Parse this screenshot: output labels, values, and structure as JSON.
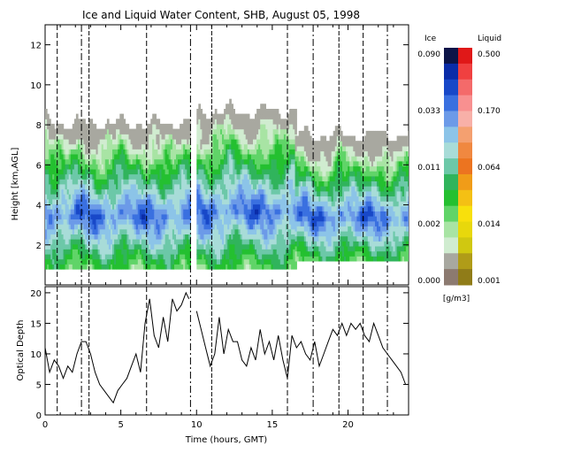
{
  "chart_data": [
    {
      "type": "heatmap",
      "title": "Ice and Liquid Water Content, SHB, August 05, 1998",
      "xlabel": "",
      "ylabel": "Height [km,AGL]",
      "xlim": [
        0,
        24
      ],
      "ylim": [
        0,
        13
      ],
      "x_ticks": [
        "0",
        "5",
        "10",
        "15",
        "20"
      ],
      "y_ticks": [
        "2",
        "4",
        "6",
        "8",
        "10",
        "12"
      ],
      "event_lines_hours": [
        0.8,
        2.4,
        2.9,
        6.7,
        9.6,
        11.0,
        16.0,
        17.7,
        19.4,
        21.0,
        22.6
      ],
      "cloud_layers_hours": [
        [
          0.0,
          9.5,
          0.8,
          8.6
        ],
        [
          10.0,
          16.5,
          0.8,
          9.2
        ],
        [
          16.5,
          24.0,
          1.2,
          8.0
        ]
      ],
      "colorbar": {
        "ice_label": "Ice",
        "liquid_label": "Liquid",
        "units": "[g/m3]",
        "ice_ticks": [
          "0.090",
          "0.033",
          "0.011",
          "0.002",
          "0.000"
        ],
        "liquid_ticks": [
          "0.500",
          "0.170",
          "0.064",
          "0.014",
          "0.001"
        ],
        "ice_colors": [
          "#0c1448",
          "#0a2ca8",
          "#1848c8",
          "#3a70e0",
          "#6c9ae8",
          "#8cc4e8",
          "#a8dcd8",
          "#6cc8a8",
          "#30b45c",
          "#24c030",
          "#60d468",
          "#a8e4a4",
          "#d0ecd0",
          "#a8a8a0",
          "#8c7a70"
        ],
        "liquid_colors": [
          "#e01818",
          "#f04040",
          "#f46a6a",
          "#f89090",
          "#f8b0a8",
          "#f4a070",
          "#f08840",
          "#ec7420",
          "#f09c18",
          "#f4c014",
          "#f8e00c",
          "#e8d80c",
          "#d0c810",
          "#b09c18",
          "#907c18"
        ]
      }
    },
    {
      "type": "line",
      "title": "",
      "xlabel": "Time (hours, GMT)",
      "ylabel": "Optical Depth",
      "xlim": [
        0,
        24
      ],
      "ylim": [
        0,
        21
      ],
      "x_ticks": [
        "0",
        "5",
        "10",
        "15",
        "20"
      ],
      "y_ticks": [
        "0",
        "5",
        "10",
        "15",
        "20"
      ],
      "x": [
        0.0,
        0.3,
        0.6,
        0.9,
        1.2,
        1.5,
        1.8,
        2.1,
        2.4,
        2.7,
        3.0,
        3.3,
        3.6,
        3.9,
        4.2,
        4.5,
        4.8,
        5.1,
        5.4,
        5.7,
        6.0,
        6.3,
        6.6,
        6.9,
        7.2,
        7.5,
        7.8,
        8.1,
        8.4,
        8.7,
        9.0,
        9.3,
        9.5,
        10.0,
        10.3,
        10.6,
        10.9,
        11.2,
        11.5,
        11.8,
        12.1,
        12.4,
        12.7,
        13.0,
        13.3,
        13.6,
        13.9,
        14.2,
        14.5,
        14.8,
        15.1,
        15.4,
        15.7,
        16.0,
        16.3,
        16.6,
        16.9,
        17.2,
        17.5,
        17.8,
        18.1,
        18.4,
        18.7,
        19.0,
        19.3,
        19.6,
        19.9,
        20.2,
        20.5,
        20.8,
        21.1,
        21.4,
        21.7,
        22.0,
        22.3,
        22.6,
        22.9,
        23.2,
        23.5,
        23.8
      ],
      "y": [
        11,
        7,
        9,
        8,
        6,
        8,
        7,
        10,
        12,
        12,
        10,
        7,
        5,
        4,
        3,
        2,
        4,
        5,
        6,
        8,
        10,
        7,
        15,
        19,
        13,
        11,
        16,
        12,
        19,
        17,
        18,
        20,
        19,
        17,
        14,
        11,
        8,
        10,
        16,
        10,
        14,
        12,
        12,
        9,
        8,
        11,
        9,
        14,
        10,
        12,
        9,
        13,
        9,
        6,
        13,
        11,
        12,
        10,
        9,
        12,
        8,
        10,
        12,
        14,
        13,
        15,
        13,
        15,
        14,
        15,
        13,
        12,
        15,
        13,
        11,
        10,
        9,
        8,
        7,
        5
      ]
    }
  ]
}
